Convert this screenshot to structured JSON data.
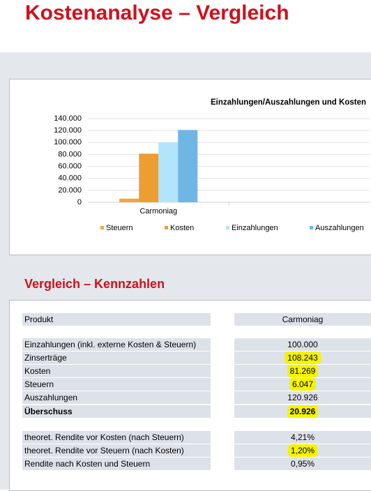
{
  "title": "Kostenanalyse – Vergleich",
  "chart_data": {
    "type": "bar",
    "title": "Einzahlungen/Auszahlungen und Kosten",
    "categories": [
      "Carmoniag",
      null
    ],
    "series": [
      {
        "name": "Steuern",
        "color": "#f2a53c",
        "values": [
          6047,
          null
        ]
      },
      {
        "name": "Kosten",
        "color": "#ec9e33",
        "values": [
          81269,
          null
        ]
      },
      {
        "name": "Einzahlungen",
        "color": "#b2e4fb",
        "values": [
          100000,
          null
        ]
      },
      {
        "name": "Auszahlungen",
        "color": "#6fb6e5",
        "values": [
          120926,
          null
        ]
      }
    ],
    "ylim": [
      0,
      140000
    ],
    "yticks": [
      0,
      {
        "value": 20000,
        "label": "20.000"
      },
      {
        "value": 40000,
        "label": "40.000"
      },
      {
        "value": 60000,
        "label": "60.000"
      },
      {
        "value": 80000,
        "label": "80.000"
      },
      {
        "value": 100000,
        "label": "100.000"
      },
      {
        "value": 120000,
        "label": "120.000"
      },
      {
        "value": 140000,
        "label": "140.000"
      }
    ],
    "grid": true,
    "legend": "bottom"
  },
  "section_title": "Vergleich – Kennzahlen",
  "table": {
    "header": [
      "Produkt",
      "Carmoniag"
    ],
    "groups": [
      [
        [
          "Einzahlungen (inkl. externe Kosten & Steuern)",
          "100.000"
        ],
        [
          "Zinserträge",
          "108.243"
        ],
        [
          "Kosten",
          "81.269"
        ],
        [
          "Steuern",
          "6.047"
        ],
        [
          "Auszahlungen",
          "120.926"
        ],
        [
          "Überschuss",
          "20.926"
        ]
      ],
      [
        [
          "theoret. Rendite vor Kosten (nach Steuern)",
          "4,21%"
        ],
        [
          "theoret. Rendite vor Steuern (nach Kosten)",
          "1,20%"
        ],
        [
          "Rendite nach Kosten und Steuern",
          "0,95%"
        ]
      ]
    ]
  }
}
